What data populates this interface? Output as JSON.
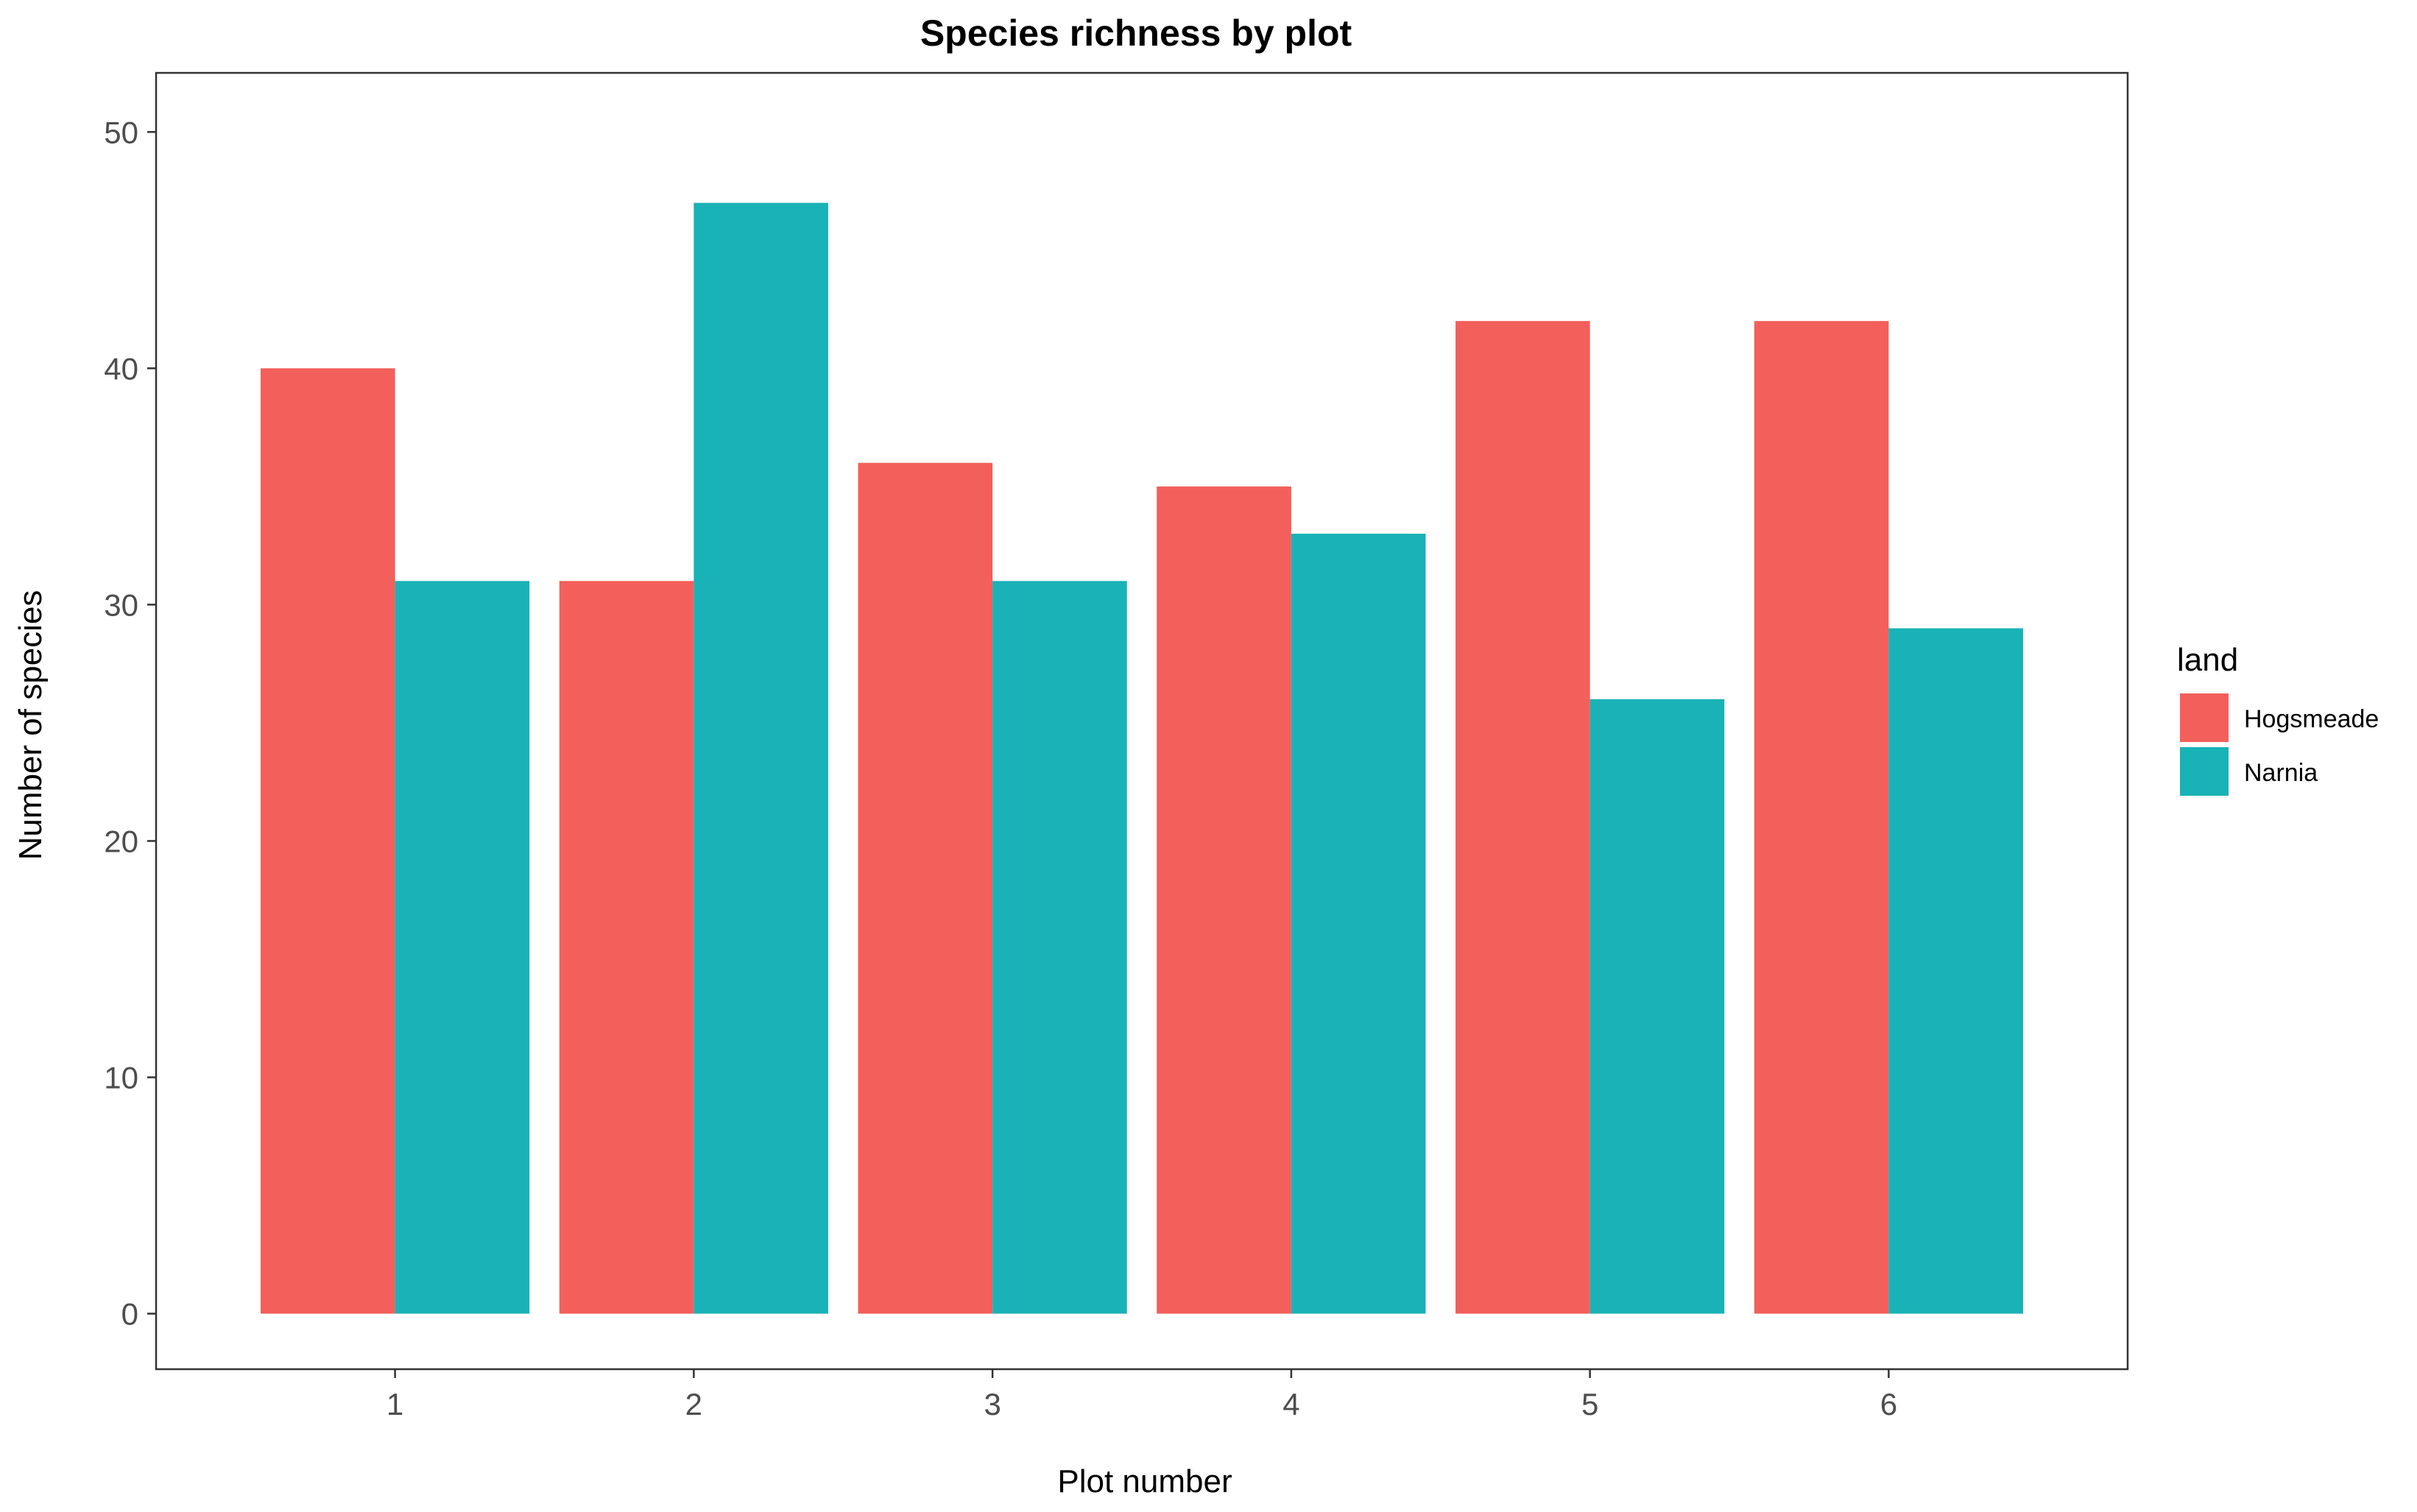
{
  "chart_data": {
    "type": "bar",
    "title": "Species richness by plot",
    "xlabel": "Plot number",
    "ylabel": "Number of species",
    "categories": [
      "1",
      "2",
      "3",
      "4",
      "5",
      "6"
    ],
    "series": [
      {
        "name": "Hogsmeade",
        "color": "#f35f5b",
        "values": [
          40,
          31,
          36,
          35,
          42,
          42
        ]
      },
      {
        "name": "Narnia",
        "color": "#19b2b6",
        "values": [
          31,
          47,
          31,
          33,
          26,
          29
        ]
      }
    ],
    "yticks": [
      "0",
      "10",
      "20",
      "30",
      "40",
      "50"
    ],
    "ylim": [
      -2.35,
      52.5
    ],
    "grid": false,
    "legend": {
      "title": "land",
      "position": "right"
    }
  }
}
